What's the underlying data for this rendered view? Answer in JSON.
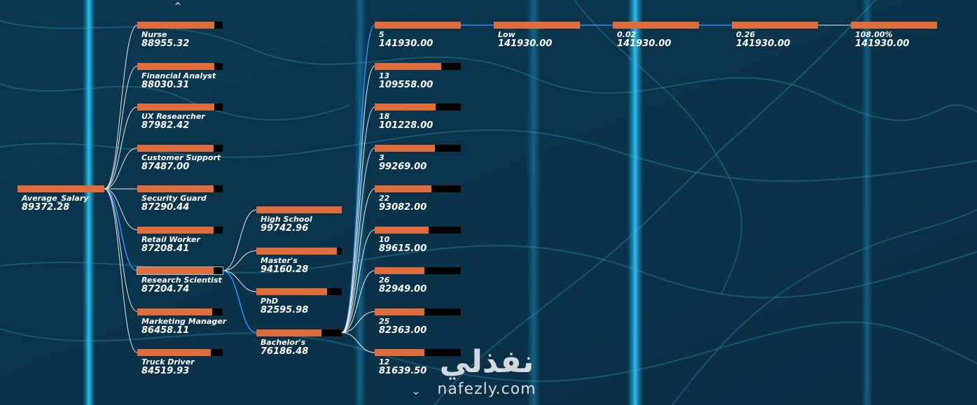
{
  "colors": {
    "bar_fill": "#e06c3c",
    "bar_track": "#000000",
    "link": "#ffffff",
    "link_active": "#2f8cff",
    "background": "#0b3a52"
  },
  "icons": {
    "nav_up": "chevron-up-icon",
    "nav_down": "chevron-down-icon"
  },
  "watermark": {
    "logo_text": "نفذلي",
    "site": "nafezly.com"
  },
  "tree": {
    "root": {
      "label": "Average_Salary",
      "value": "89372.28",
      "fraction": 1.0
    },
    "levels": [
      {
        "nodes": [
          {
            "label": "Nurse",
            "value": "88955.32",
            "fraction": 0.9
          },
          {
            "label": "Financial Analyst",
            "value": "88030.31",
            "fraction": 0.9
          },
          {
            "label": "UX Researcher",
            "value": "87982.42",
            "fraction": 0.9
          },
          {
            "label": "Customer Support",
            "value": "87487.00",
            "fraction": 0.89
          },
          {
            "label": "Security Guard",
            "value": "87290.44",
            "fraction": 0.89
          },
          {
            "label": "Retail Worker",
            "value": "87208.41",
            "fraction": 0.89
          },
          {
            "label": "Research Scientist",
            "value": "87204.74",
            "fraction": 0.89,
            "expanded": true
          },
          {
            "label": "Marketing Manager",
            "value": "86458.11",
            "fraction": 0.88
          },
          {
            "label": "Truck Driver",
            "value": "84519.93",
            "fraction": 0.86
          }
        ]
      },
      {
        "nodes": [
          {
            "label": "High School",
            "value": "99742.96",
            "fraction": 1.0
          },
          {
            "label": "Master's",
            "value": "94160.28",
            "fraction": 0.94
          },
          {
            "label": "PhD",
            "value": "82595.98",
            "fraction": 0.83
          },
          {
            "label": "Bachelor's",
            "value": "76186.48",
            "fraction": 0.76,
            "expanded": true
          }
        ]
      },
      {
        "nodes": [
          {
            "label": "5",
            "value": "141930.00",
            "fraction": 1.0,
            "expanded": true
          },
          {
            "label": "13",
            "value": "109558.00",
            "fraction": 0.77
          },
          {
            "label": "18",
            "value": "101228.00",
            "fraction": 0.71
          },
          {
            "label": "3",
            "value": "99269.00",
            "fraction": 0.7
          },
          {
            "label": "22",
            "value": "93082.00",
            "fraction": 0.66
          },
          {
            "label": "10",
            "value": "89615.00",
            "fraction": 0.63
          },
          {
            "label": "26",
            "value": "82949.00",
            "fraction": 0.58
          },
          {
            "label": "25",
            "value": "82363.00",
            "fraction": 0.58
          },
          {
            "label": "12",
            "value": "81639.50",
            "fraction": 0.58
          }
        ]
      },
      {
        "nodes": [
          {
            "label": "Low",
            "value": "141930.00",
            "fraction": 1.0,
            "expanded": true
          }
        ]
      },
      {
        "nodes": [
          {
            "label": "0.02",
            "value": "141930.00",
            "fraction": 1.0,
            "expanded": true
          }
        ]
      },
      {
        "nodes": [
          {
            "label": "0.26",
            "value": "141930.00",
            "fraction": 1.0,
            "expanded": true
          }
        ]
      },
      {
        "nodes": [
          {
            "label": "108.00%",
            "value": "141930.00",
            "fraction": 1.0
          }
        ]
      }
    ]
  }
}
